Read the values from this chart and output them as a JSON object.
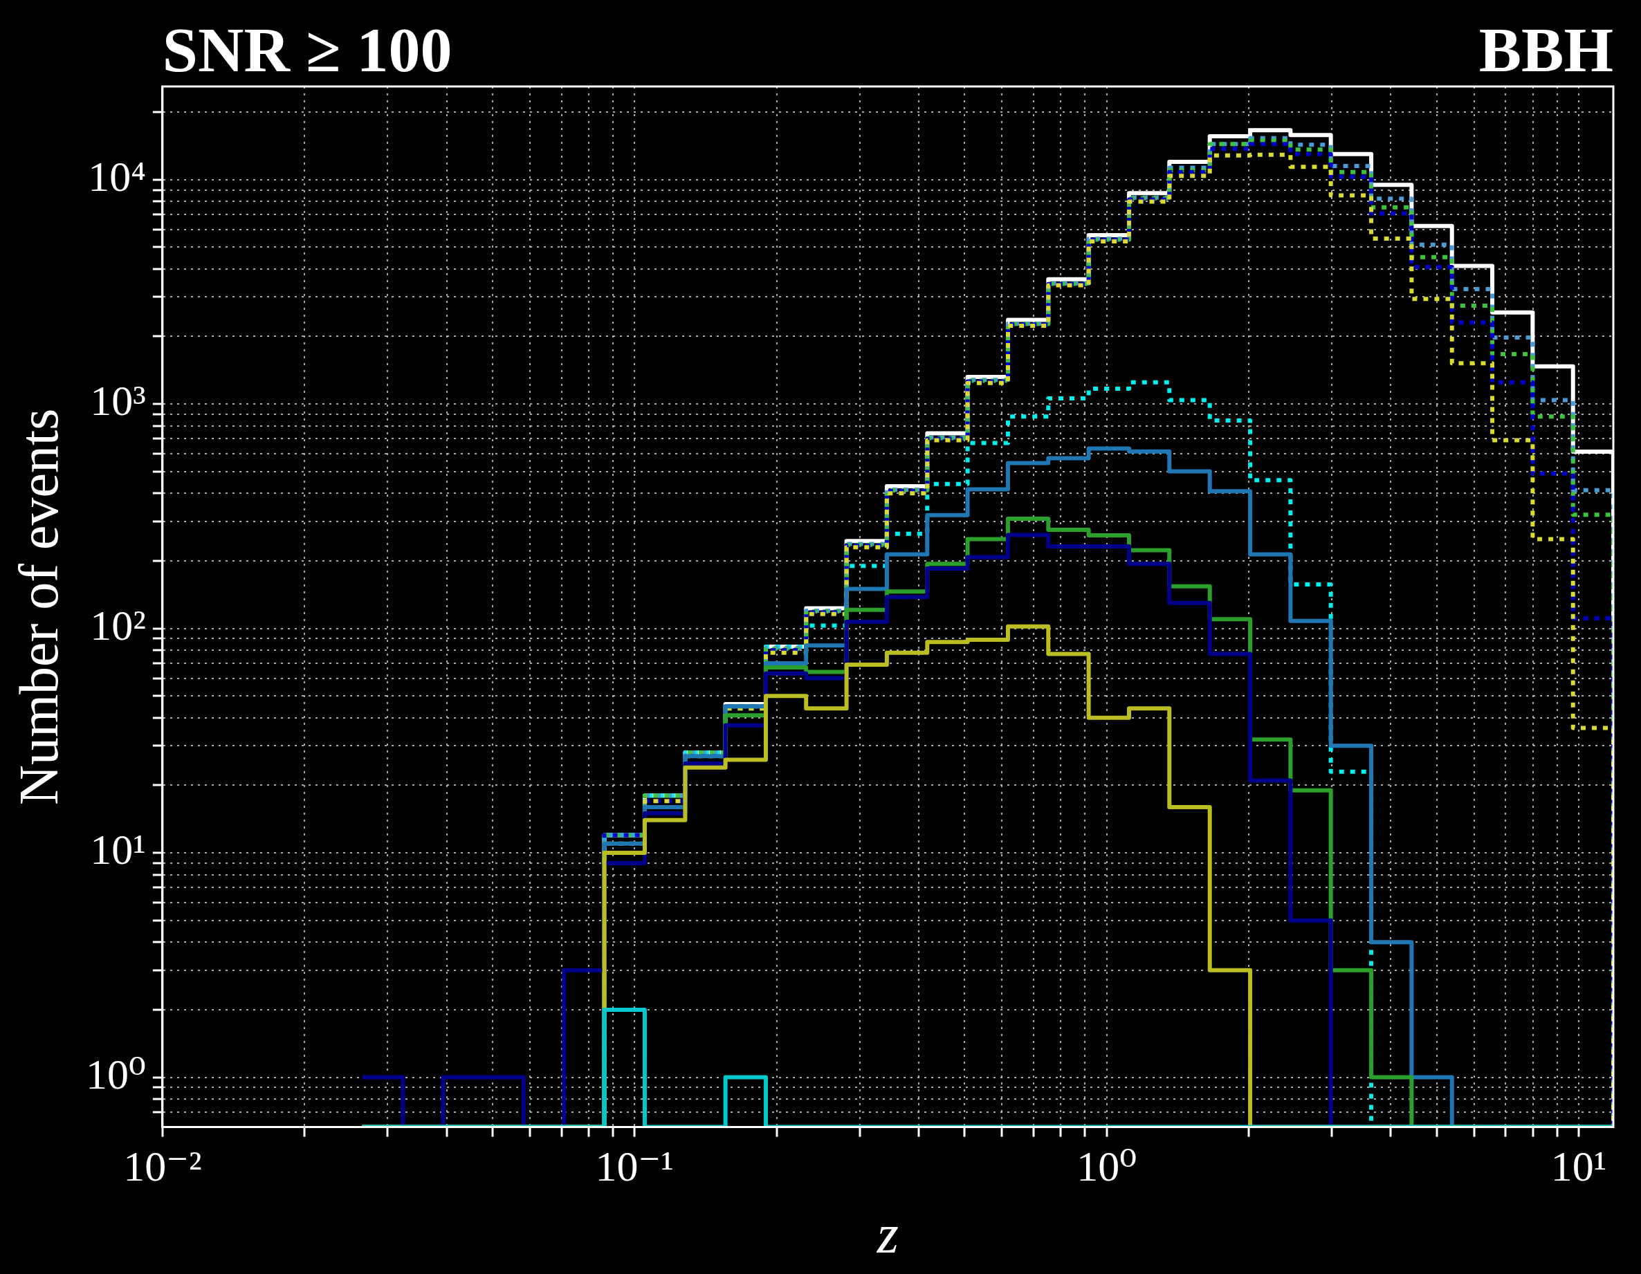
{
  "chart_data": {
    "type": "histogram",
    "title": "SNR ≥ 100",
    "annotations": [
      "BBH"
    ],
    "xlabel": "z",
    "ylabel": "Number of events",
    "log": "xy",
    "grid": true,
    "xlim": [
      0.01,
      11.84
    ],
    "ylim": [
      0.6,
      26000
    ],
    "xticks": [
      {
        "value": 0.01,
        "label": "10⁻²"
      },
      {
        "value": 0.02,
        "label": null
      },
      {
        "value": 0.03,
        "label": null
      },
      {
        "value": 0.04,
        "label": null
      },
      {
        "value": 0.05,
        "label": null
      },
      {
        "value": 0.06,
        "label": null
      },
      {
        "value": 0.07,
        "label": null
      },
      {
        "value": 0.08,
        "label": null
      },
      {
        "value": 0.09,
        "label": null
      },
      {
        "value": 0.1,
        "label": "10⁻¹"
      },
      {
        "value": 0.2,
        "label": null
      },
      {
        "value": 0.3,
        "label": null
      },
      {
        "value": 0.4,
        "label": null
      },
      {
        "value": 0.5,
        "label": null
      },
      {
        "value": 0.6,
        "label": null
      },
      {
        "value": 0.7,
        "label": null
      },
      {
        "value": 0.8,
        "label": null
      },
      {
        "value": 0.9,
        "label": null
      },
      {
        "value": 1,
        "label": "10⁰"
      },
      {
        "value": 2,
        "label": null
      },
      {
        "value": 3,
        "label": null
      },
      {
        "value": 4,
        "label": null
      },
      {
        "value": 5,
        "label": null
      },
      {
        "value": 6,
        "label": null
      },
      {
        "value": 7,
        "label": null
      },
      {
        "value": 8,
        "label": null
      },
      {
        "value": 9,
        "label": null
      },
      {
        "value": 10,
        "label": "10¹"
      }
    ],
    "yticks": [
      {
        "value": 0.7,
        "label": null
      },
      {
        "value": 0.8,
        "label": null
      },
      {
        "value": 0.9,
        "label": null
      },
      {
        "value": 1,
        "label": "10⁰"
      },
      {
        "value": 2,
        "label": null
      },
      {
        "value": 3,
        "label": null
      },
      {
        "value": 4,
        "label": null
      },
      {
        "value": 5,
        "label": null
      },
      {
        "value": 6,
        "label": null
      },
      {
        "value": 7,
        "label": null
      },
      {
        "value": 8,
        "label": null
      },
      {
        "value": 9,
        "label": null
      },
      {
        "value": 10,
        "label": "10¹"
      },
      {
        "value": 20,
        "label": null
      },
      {
        "value": 30,
        "label": null
      },
      {
        "value": 40,
        "label": null
      },
      {
        "value": 50,
        "label": null
      },
      {
        "value": 60,
        "label": null
      },
      {
        "value": 70,
        "label": null
      },
      {
        "value": 80,
        "label": null
      },
      {
        "value": 90,
        "label": null
      },
      {
        "value": 100,
        "label": "10²"
      },
      {
        "value": 200,
        "label": null
      },
      {
        "value": 300,
        "label": null
      },
      {
        "value": 400,
        "label": null
      },
      {
        "value": 500,
        "label": null
      },
      {
        "value": 600,
        "label": null
      },
      {
        "value": 700,
        "label": null
      },
      {
        "value": 800,
        "label": null
      },
      {
        "value": 900,
        "label": null
      },
      {
        "value": 1000,
        "label": "10³"
      },
      {
        "value": 2000,
        "label": null
      },
      {
        "value": 3000,
        "label": null
      },
      {
        "value": 4000,
        "label": null
      },
      {
        "value": 5000,
        "label": null
      },
      {
        "value": 6000,
        "label": null
      },
      {
        "value": 7000,
        "label": null
      },
      {
        "value": 8000,
        "label": null
      },
      {
        "value": 9000,
        "label": null
      },
      {
        "value": 10000,
        "label": "10⁴"
      },
      {
        "value": 20000,
        "label": null
      }
    ],
    "bins": [
      0.0265,
      0.0323,
      0.0393,
      0.0478,
      0.0582,
      0.0709,
      0.0863,
      0.1051,
      0.128,
      0.1558,
      0.1897,
      0.2309,
      0.2812,
      0.3423,
      0.4169,
      0.5075,
      0.618,
      0.7524,
      0.9162,
      1.1156,
      1.358,
      1.654,
      2.014,
      2.452,
      2.985,
      3.635,
      4.426,
      5.389,
      6.561,
      7.988,
      9.727,
      11.84
    ],
    "series": [
      {
        "color": "#ffffff",
        "line_style": "solid",
        "values": [
          null,
          null,
          null,
          null,
          null,
          null,
          12,
          18,
          28,
          46,
          83,
          123,
          245,
          430,
          740,
          1320,
          2370,
          3600,
          5650,
          8700,
          12000,
          15600,
          16600,
          15800,
          13000,
          9480,
          6210,
          4120,
          2560,
          1470,
          614
        ]
      },
      {
        "color": "#00f0f0",
        "line_style": "dotted",
        "values": [
          null,
          null,
          null,
          null,
          null,
          null,
          12,
          18,
          28,
          44,
          83,
          103,
          190,
          264,
          440,
          670,
          880,
          1060,
          1170,
          1250,
          1040,
          845,
          458,
          157,
          23,
          null,
          null,
          null,
          null,
          null,
          null
        ]
      },
      {
        "color": "#4a9ad8",
        "line_style": "dotted",
        "values": [
          null,
          null,
          null,
          null,
          null,
          null,
          12,
          18,
          28,
          45,
          82,
          120,
          238,
          415,
          710,
          1280,
          2280,
          3450,
          5450,
          8310,
          11300,
          14400,
          15300,
          14300,
          11500,
          8220,
          5130,
          3250,
          1980,
          1040,
          413
        ]
      },
      {
        "color": "#3cc43c",
        "line_style": "dotted",
        "values": [
          null,
          null,
          null,
          null,
          null,
          null,
          12,
          18,
          28,
          45,
          81,
          119,
          236,
          412,
          705,
          1270,
          2270,
          3430,
          5400,
          8250,
          11000,
          14400,
          14900,
          13600,
          10800,
          7520,
          4510,
          2740,
          1670,
          880,
          321
        ]
      },
      {
        "color": "#0000cd",
        "line_style": "dotted",
        "values": [
          null,
          null,
          null,
          null,
          null,
          null,
          12,
          17,
          27,
          45,
          80,
          118,
          234,
          410,
          700,
          1260,
          2260,
          3420,
          5400,
          8150,
          10800,
          13700,
          14400,
          13000,
          10300,
          7070,
          4080,
          2310,
          1250,
          490,
          111
        ]
      },
      {
        "color": "#dada30",
        "line_style": "dotted",
        "values": [
          null,
          null,
          null,
          null,
          null,
          null,
          11,
          17,
          27,
          44,
          78,
          116,
          230,
          400,
          690,
          1240,
          2230,
          3380,
          5300,
          7980,
          10400,
          12800,
          12900,
          11400,
          8500,
          5460,
          2940,
          1520,
          690,
          250,
          36
        ]
      },
      {
        "color": "#1f77b4",
        "line_style": "solid",
        "values": [
          null,
          null,
          null,
          null,
          null,
          null,
          11,
          16,
          27,
          45,
          70,
          84,
          150,
          214,
          320,
          417,
          546,
          574,
          633,
          615,
          501,
          409,
          214,
          108,
          30,
          4,
          1,
          null,
          null,
          null,
          null
        ]
      },
      {
        "color": "#2ca02c",
        "line_style": "solid",
        "values": [
          null,
          null,
          null,
          null,
          null,
          null,
          10,
          15,
          25,
          41,
          67,
          64,
          121,
          146,
          194,
          250,
          308,
          275,
          260,
          223,
          154,
          110,
          32,
          19,
          3,
          1,
          null,
          null,
          null,
          null,
          null
        ]
      },
      {
        "color": "#00008b",
        "line_style": "solid",
        "values": [
          1,
          null,
          1,
          1,
          null,
          3,
          9,
          15,
          25,
          37,
          63,
          60,
          107,
          138,
          185,
          208,
          261,
          232,
          232,
          194,
          130,
          77,
          21,
          5,
          null,
          null,
          null,
          null,
          null,
          null,
          null
        ]
      },
      {
        "color": "#bcbd22",
        "line_style": "solid",
        "values": [
          null,
          null,
          null,
          null,
          null,
          null,
          10,
          14,
          24,
          26,
          50,
          44,
          69,
          78,
          87,
          89,
          102,
          77,
          40,
          44,
          16,
          3,
          null,
          null,
          null,
          null,
          null,
          null,
          null,
          null,
          null
        ]
      },
      {
        "color": "#00c8cc",
        "line_style": "solid",
        "values": [
          null,
          null,
          null,
          null,
          null,
          null,
          2,
          null,
          null,
          1,
          null,
          null,
          null,
          null,
          null,
          null,
          null,
          null,
          null,
          null,
          null,
          null,
          null,
          null,
          null,
          null,
          null,
          null,
          null,
          null,
          null
        ]
      }
    ]
  }
}
